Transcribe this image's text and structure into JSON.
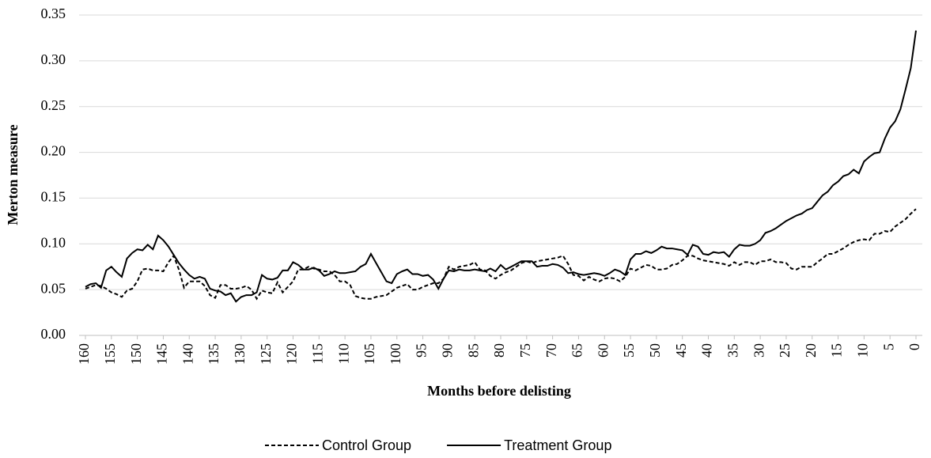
{
  "chart_data": {
    "type": "line",
    "y_label": "Merton measure",
    "x_label": "Months before delisting",
    "x": [
      160,
      159,
      158,
      157,
      156,
      155,
      154,
      153,
      152,
      151,
      150,
      149,
      148,
      147,
      146,
      145,
      144,
      143,
      142,
      141,
      140,
      139,
      138,
      137,
      136,
      135,
      134,
      133,
      132,
      131,
      130,
      129,
      128,
      127,
      126,
      125,
      124,
      123,
      122,
      121,
      120,
      119,
      118,
      117,
      116,
      115,
      114,
      113,
      112,
      111,
      110,
      109,
      108,
      107,
      106,
      105,
      104,
      103,
      102,
      101,
      100,
      99,
      98,
      97,
      96,
      95,
      94,
      93,
      92,
      91,
      90,
      89,
      88,
      87,
      86,
      85,
      84,
      83,
      82,
      81,
      80,
      79,
      78,
      77,
      76,
      75,
      74,
      73,
      72,
      71,
      70,
      69,
      68,
      67,
      66,
      65,
      64,
      63,
      62,
      61,
      60,
      59,
      58,
      57,
      56,
      55,
      54,
      53,
      52,
      51,
      50,
      49,
      48,
      47,
      46,
      45,
      44,
      43,
      42,
      41,
      40,
      39,
      38,
      37,
      36,
      35,
      34,
      33,
      32,
      31,
      30,
      29,
      28,
      27,
      26,
      25,
      24,
      23,
      22,
      21,
      20,
      19,
      18,
      17,
      16,
      15,
      14,
      13,
      12,
      11,
      10,
      9,
      8,
      7,
      6,
      5,
      4,
      3,
      2,
      1,
      0
    ],
    "xlim": [
      160,
      0
    ],
    "xticks": [
      160,
      155,
      150,
      145,
      140,
      135,
      130,
      125,
      120,
      115,
      110,
      105,
      100,
      95,
      90,
      85,
      80,
      75,
      70,
      65,
      60,
      55,
      50,
      45,
      40,
      35,
      30,
      25,
      20,
      15,
      10,
      5,
      0
    ],
    "ylim": [
      0,
      0.35
    ],
    "yticks": [
      {
        "value": 0,
        "label": "0.00"
      },
      0.05,
      {
        "value": 0.1,
        "label": "0.10"
      },
      0.15,
      {
        "value": 0.2,
        "label": "0.20"
      },
      0.25,
      {
        "value": 0.3,
        "label": "0.30"
      },
      0.35
    ],
    "grid": true,
    "legend": "bottom",
    "series": [
      {
        "name": "Control Group",
        "color": "#000000",
        "dash": "dashed",
        "values": [
          0.051,
          0.053,
          0.055,
          0.054,
          0.051,
          0.047,
          0.045,
          0.042,
          0.049,
          0.051,
          0.059,
          0.072,
          0.073,
          0.071,
          0.071,
          0.07,
          0.08,
          0.087,
          0.072,
          0.052,
          0.059,
          0.059,
          0.059,
          0.054,
          0.044,
          0.041,
          0.055,
          0.055,
          0.051,
          0.051,
          0.052,
          0.054,
          0.05,
          0.04,
          0.049,
          0.047,
          0.046,
          0.058,
          0.047,
          0.053,
          0.059,
          0.072,
          0.072,
          0.075,
          0.073,
          0.072,
          0.07,
          0.07,
          0.066,
          0.059,
          0.059,
          0.055,
          0.043,
          0.041,
          0.04,
          0.04,
          0.042,
          0.043,
          0.044,
          0.048,
          0.052,
          0.054,
          0.056,
          0.05,
          0.05,
          0.053,
          0.055,
          0.057,
          0.057,
          0.062,
          0.075,
          0.072,
          0.075,
          0.076,
          0.077,
          0.08,
          0.072,
          0.071,
          0.065,
          0.062,
          0.066,
          0.069,
          0.071,
          0.075,
          0.079,
          0.081,
          0.079,
          0.081,
          0.082,
          0.083,
          0.084,
          0.085,
          0.087,
          0.078,
          0.066,
          0.065,
          0.06,
          0.064,
          0.061,
          0.059,
          0.062,
          0.063,
          0.062,
          0.059,
          0.064,
          0.073,
          0.071,
          0.074,
          0.077,
          0.076,
          0.072,
          0.072,
          0.073,
          0.077,
          0.078,
          0.082,
          0.087,
          0.087,
          0.084,
          0.082,
          0.081,
          0.08,
          0.079,
          0.078,
          0.076,
          0.08,
          0.077,
          0.08,
          0.08,
          0.077,
          0.081,
          0.081,
          0.083,
          0.08,
          0.08,
          0.079,
          0.073,
          0.072,
          0.075,
          0.075,
          0.075,
          0.08,
          0.084,
          0.089,
          0.089,
          0.092,
          0.095,
          0.099,
          0.102,
          0.104,
          0.105,
          0.104,
          0.111,
          0.111,
          0.114,
          0.113,
          0.119,
          0.123,
          0.127,
          0.133,
          0.138
        ]
      },
      {
        "name": "Treatment Group",
        "color": "#000000",
        "dash": "solid",
        "values": [
          0.053,
          0.056,
          0.057,
          0.052,
          0.071,
          0.075,
          0.069,
          0.064,
          0.084,
          0.09,
          0.094,
          0.093,
          0.099,
          0.094,
          0.109,
          0.104,
          0.097,
          0.088,
          0.079,
          0.072,
          0.066,
          0.062,
          0.064,
          0.062,
          0.051,
          0.049,
          0.048,
          0.044,
          0.046,
          0.037,
          0.042,
          0.044,
          0.044,
          0.047,
          0.066,
          0.062,
          0.061,
          0.063,
          0.071,
          0.071,
          0.08,
          0.077,
          0.072,
          0.072,
          0.074,
          0.071,
          0.065,
          0.067,
          0.07,
          0.068,
          0.068,
          0.069,
          0.07,
          0.075,
          0.078,
          0.089,
          0.079,
          0.069,
          0.059,
          0.057,
          0.067,
          0.07,
          0.072,
          0.067,
          0.067,
          0.065,
          0.066,
          0.061,
          0.051,
          0.062,
          0.071,
          0.07,
          0.072,
          0.071,
          0.071,
          0.072,
          0.071,
          0.07,
          0.073,
          0.07,
          0.077,
          0.072,
          0.075,
          0.078,
          0.081,
          0.081,
          0.081,
          0.075,
          0.076,
          0.076,
          0.078,
          0.077,
          0.074,
          0.068,
          0.069,
          0.067,
          0.066,
          0.067,
          0.068,
          0.067,
          0.065,
          0.068,
          0.072,
          0.07,
          0.066,
          0.083,
          0.089,
          0.089,
          0.092,
          0.09,
          0.093,
          0.097,
          0.095,
          0.095,
          0.094,
          0.093,
          0.088,
          0.099,
          0.097,
          0.089,
          0.088,
          0.091,
          0.09,
          0.091,
          0.086,
          0.094,
          0.099,
          0.098,
          0.098,
          0.1,
          0.104,
          0.112,
          0.114,
          0.117,
          0.121,
          0.125,
          0.128,
          0.131,
          0.133,
          0.137,
          0.139,
          0.146,
          0.153,
          0.157,
          0.164,
          0.168,
          0.174,
          0.176,
          0.181,
          0.177,
          0.19,
          0.195,
          0.199,
          0.2,
          0.215,
          0.227,
          0.234,
          0.247,
          0.269,
          0.292,
          0.333
        ]
      }
    ]
  }
}
